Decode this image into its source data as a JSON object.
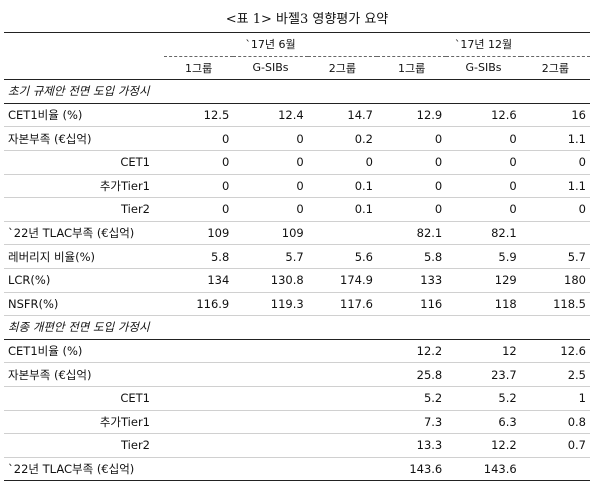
{
  "title": "<표 1> 바젤3 영향평가 요약",
  "periods": [
    "`17년 6월",
    "`17년 12월"
  ],
  "subheaders": [
    "1그룹",
    "G-SIBs",
    "2그룹",
    "1그룹",
    "G-SIBs",
    "2그룹"
  ],
  "sections": [
    {
      "title": "초기 규제안 전면 도입 가정시",
      "rows": [
        {
          "label": "CET1비율 (%)",
          "values": [
            "12.5",
            "12.4",
            "14.7",
            "12.9",
            "12.6",
            "16"
          ]
        },
        {
          "label": "자본부족 (€십억)",
          "values": [
            "0",
            "0",
            "0.2",
            "0",
            "0",
            "1.1"
          ]
        },
        {
          "label": "CET1",
          "values": [
            "0",
            "0",
            "0",
            "0",
            "0",
            "0"
          ]
        },
        {
          "label": "추가Tier1",
          "values": [
            "0",
            "0",
            "0.1",
            "0",
            "0",
            "1.1"
          ]
        },
        {
          "label": "Tier2",
          "values": [
            "0",
            "0",
            "0.1",
            "0",
            "0",
            "0"
          ]
        },
        {
          "label": "`22년 TLAC부족 (€십억)",
          "values": [
            "109",
            "109",
            "",
            "82.1",
            "82.1",
            ""
          ]
        },
        {
          "label": "레버리지 비율(%)",
          "values": [
            "5.8",
            "5.7",
            "5.6",
            "5.8",
            "5.9",
            "5.7"
          ]
        },
        {
          "label": "LCR(%)",
          "values": [
            "134",
            "130.8",
            "174.9",
            "133",
            "129",
            "180"
          ]
        },
        {
          "label": "NSFR(%)",
          "values": [
            "116.9",
            "119.3",
            "117.6",
            "116",
            "118",
            "118.5"
          ]
        }
      ]
    },
    {
      "title": "최종 개편안 전면 도입 가정시",
      "rows": [
        {
          "label": "CET1비율 (%)",
          "values": [
            "",
            "",
            "",
            "12.2",
            "12",
            "12.6"
          ]
        },
        {
          "label": "자본부족 (€십억)",
          "values": [
            "",
            "",
            "",
            "25.8",
            "23.7",
            "2.5"
          ]
        },
        {
          "label": "CET1",
          "values": [
            "",
            "",
            "",
            "5.2",
            "5.2",
            "1"
          ]
        },
        {
          "label": "추가Tier1",
          "values": [
            "",
            "",
            "",
            "7.3",
            "6.3",
            "0.8"
          ]
        },
        {
          "label": "Tier2",
          "values": [
            "",
            "",
            "",
            "13.3",
            "12.2",
            "0.7"
          ]
        },
        {
          "label": "`22년 TLAC부족 (€십억)",
          "values": [
            "",
            "",
            "",
            "143.6",
            "143.6",
            ""
          ]
        }
      ]
    }
  ]
}
